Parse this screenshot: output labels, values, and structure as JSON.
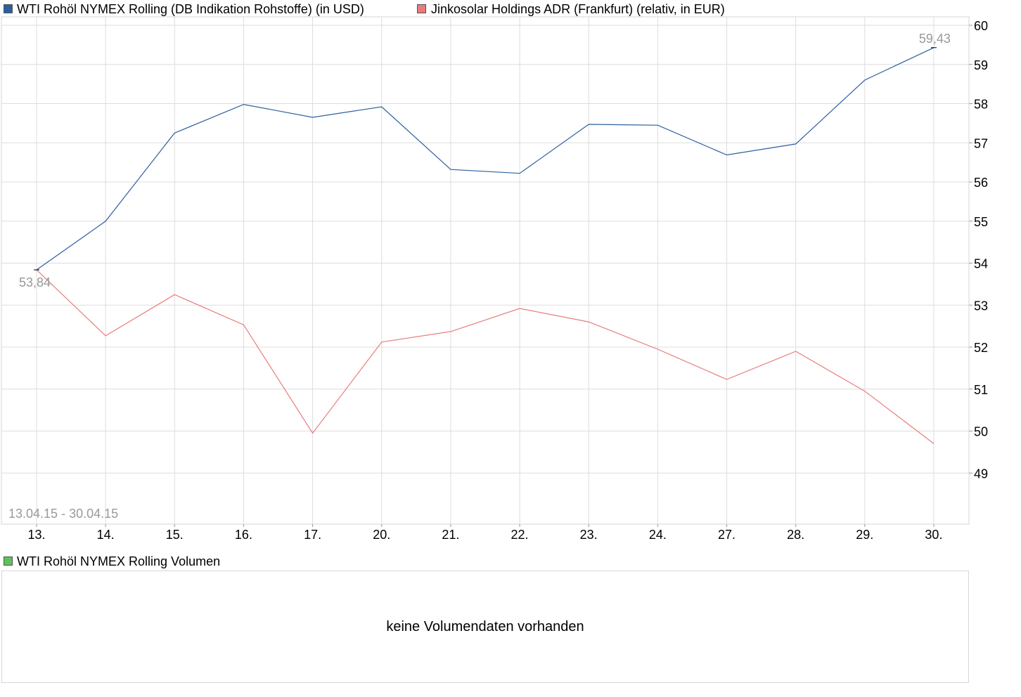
{
  "legend": {
    "series1_label": "WTI Rohöl NYMEX Rolling (DB Indikation Rohstoffe) (in USD)",
    "series2_label": "Jinkosolar Holdings ADR (Frankfurt) (relativ, in EUR)",
    "volume_label": "WTI Rohöl NYMEX Rolling Volumen"
  },
  "volume": {
    "message": "keine Volumendaten vorhanden"
  },
  "colors": {
    "series1": "#2d5f9e",
    "series2": "#e87c7c",
    "volume": "#5cc35c",
    "grid": "#dddddd",
    "annotation": "#999999"
  },
  "chart_data": {
    "type": "line",
    "categories": [
      "13.",
      "14.",
      "15.",
      "16.",
      "17.",
      "20.",
      "21.",
      "22.",
      "23.",
      "24.",
      "27.",
      "28.",
      "29.",
      "30."
    ],
    "date_range": "13.04.15 - 30.04.15",
    "ylim": [
      48.4,
      60.3
    ],
    "yticks": [
      49,
      50,
      51,
      52,
      53,
      54,
      55,
      56,
      57,
      58,
      59,
      60
    ],
    "grid": true,
    "legend_position": "top-left",
    "series": [
      {
        "name": "WTI Rohöl NYMEX Rolling (DB Indikation Rohstoffe) (in USD)",
        "color": "#2d5f9e",
        "values": [
          53.84,
          55.0,
          57.25,
          57.98,
          57.65,
          57.92,
          56.32,
          56.22,
          57.47,
          57.45,
          56.69,
          56.97,
          58.6,
          59.43
        ]
      },
      {
        "name": "Jinkosolar Holdings ADR (Frankfurt) (relativ, in EUR)",
        "color": "#e87c7c",
        "values": [
          53.84,
          52.27,
          53.25,
          52.53,
          49.95,
          52.12,
          52.37,
          52.92,
          52.6,
          51.95,
          51.23,
          51.9,
          50.95,
          49.7
        ]
      }
    ],
    "annotations": {
      "min_label": "53,84",
      "max_label": "59,43"
    }
  }
}
